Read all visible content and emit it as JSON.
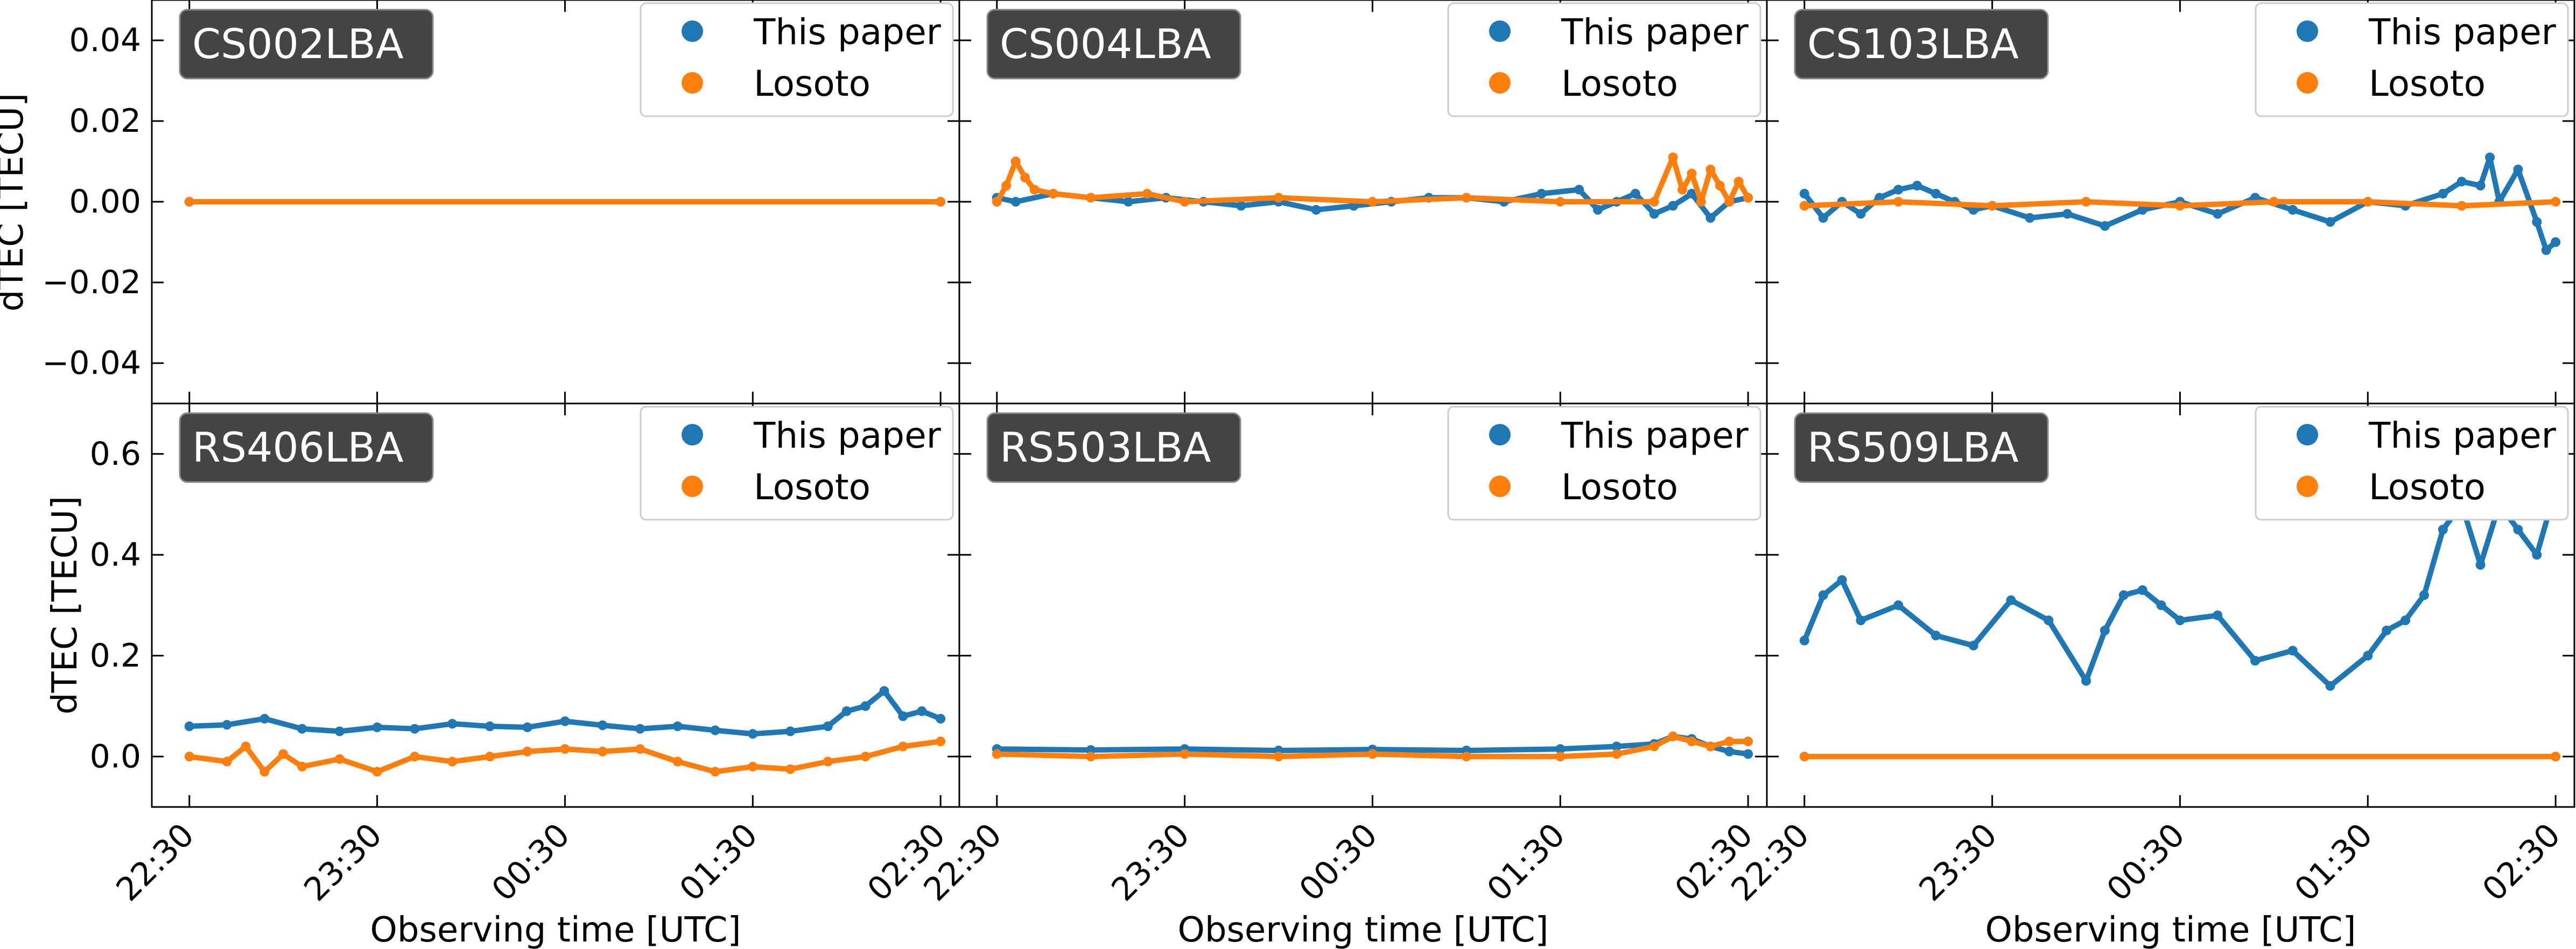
{
  "chart_data": {
    "type": "scatter",
    "x_tick_labels": [
      "22:30",
      "23:30",
      "00:30",
      "01:30",
      "02:30"
    ],
    "x_range_hours": [
      -0.2,
      4.1
    ],
    "x_tick_hours": [
      0,
      1,
      2,
      3,
      4
    ],
    "xlabel": "Observing time [UTC]",
    "ylabel": "dTEC [TECU]",
    "legend": [
      "This paper",
      "Losoto"
    ],
    "series_colors": {
      "This paper": "#1f77b4",
      "Losoto": "#ff7f0e"
    },
    "rows": [
      {
        "ylim": [
          -0.05,
          0.05
        ],
        "y_ticks": [
          -0.04,
          -0.02,
          0.0,
          0.02,
          0.04
        ],
        "y_tick_labels": [
          "−0.04",
          "−0.02",
          "0.00",
          "0.02",
          "0.04"
        ]
      },
      {
        "ylim": [
          -0.1,
          0.7
        ],
        "y_ticks": [
          0.0,
          0.2,
          0.4,
          0.6
        ],
        "y_tick_labels": [
          "0.0",
          "0.2",
          "0.4",
          "0.6"
        ]
      }
    ],
    "panels": [
      {
        "station": "CS002LBA",
        "this_paper": {
          "x": [
            0,
            4
          ],
          "y": [
            0.0,
            0.0
          ]
        },
        "losoto": {
          "x": [
            0,
            4
          ],
          "y": [
            0.0,
            0.0
          ]
        }
      },
      {
        "station": "CS004LBA",
        "this_paper": {
          "x": [
            0,
            0.1,
            0.3,
            0.5,
            0.7,
            0.9,
            1.1,
            1.3,
            1.5,
            1.7,
            1.9,
            2.1,
            2.3,
            2.5,
            2.7,
            2.9,
            3.1,
            3.2,
            3.3,
            3.4,
            3.5,
            3.6,
            3.7,
            3.8,
            3.9,
            4.0
          ],
          "y": [
            0.001,
            0.0,
            0.002,
            0.001,
            0.0,
            0.001,
            0.0,
            -0.001,
            0.0,
            -0.002,
            -0.001,
            0.0,
            0.001,
            0.001,
            0.0,
            0.002,
            0.003,
            -0.002,
            0.0,
            0.002,
            -0.003,
            -0.001,
            0.002,
            -0.004,
            0.0,
            0.001
          ]
        },
        "losoto": {
          "x": [
            0,
            0.05,
            0.1,
            0.15,
            0.2,
            0.3,
            0.5,
            0.8,
            1.0,
            1.5,
            2.0,
            2.5,
            3.0,
            3.5,
            3.6,
            3.65,
            3.7,
            3.75,
            3.8,
            3.85,
            3.9,
            3.95,
            4.0
          ],
          "y": [
            0.0,
            0.004,
            0.01,
            0.006,
            0.003,
            0.002,
            0.001,
            0.002,
            0.0,
            0.001,
            0.0,
            0.001,
            0.0,
            0.0,
            0.011,
            0.003,
            0.007,
            0.0,
            0.008,
            0.004,
            0.0,
            0.005,
            0.001
          ]
        }
      },
      {
        "station": "CS103LBA",
        "this_paper": {
          "x": [
            0,
            0.1,
            0.2,
            0.3,
            0.4,
            0.5,
            0.6,
            0.7,
            0.8,
            0.9,
            1.0,
            1.2,
            1.4,
            1.6,
            1.8,
            2.0,
            2.2,
            2.4,
            2.6,
            2.8,
            3.0,
            3.2,
            3.4,
            3.5,
            3.6,
            3.65,
            3.7,
            3.8,
            3.9,
            3.95,
            4.0
          ],
          "y": [
            0.002,
            -0.004,
            0.0,
            -0.003,
            0.001,
            0.003,
            0.004,
            0.002,
            0.0,
            -0.002,
            -0.001,
            -0.004,
            -0.003,
            -0.006,
            -0.002,
            0.0,
            -0.003,
            0.001,
            -0.002,
            -0.005,
            0.0,
            -0.001,
            0.002,
            0.005,
            0.004,
            0.011,
            0.0,
            0.008,
            -0.005,
            -0.012,
            -0.01
          ]
        },
        "losoto": {
          "x": [
            0,
            0.5,
            1.0,
            1.5,
            2.0,
            2.5,
            3.0,
            3.5,
            4.0
          ],
          "y": [
            -0.001,
            0.0,
            -0.001,
            0.0,
            -0.001,
            0.0,
            0.0,
            -0.001,
            0.0
          ]
        }
      },
      {
        "station": "RS406LBA",
        "this_paper": {
          "x": [
            0,
            0.2,
            0.4,
            0.6,
            0.8,
            1.0,
            1.2,
            1.4,
            1.6,
            1.8,
            2.0,
            2.2,
            2.4,
            2.6,
            2.8,
            3.0,
            3.2,
            3.4,
            3.5,
            3.6,
            3.7,
            3.8,
            3.9,
            4.0
          ],
          "y": [
            0.06,
            0.063,
            0.075,
            0.055,
            0.05,
            0.058,
            0.055,
            0.065,
            0.06,
            0.058,
            0.07,
            0.062,
            0.055,
            0.06,
            0.052,
            0.045,
            0.05,
            0.06,
            0.09,
            0.1,
            0.13,
            0.08,
            0.09,
            0.075
          ]
        },
        "losoto": {
          "x": [
            0,
            0.2,
            0.3,
            0.4,
            0.5,
            0.6,
            0.8,
            1.0,
            1.2,
            1.4,
            1.6,
            1.8,
            2.0,
            2.2,
            2.4,
            2.6,
            2.8,
            3.0,
            3.2,
            3.4,
            3.6,
            3.8,
            4.0
          ],
          "y": [
            0.0,
            -0.01,
            0.02,
            -0.03,
            0.005,
            -0.02,
            -0.005,
            -0.03,
            0.0,
            -0.01,
            0.0,
            0.01,
            0.015,
            0.01,
            0.015,
            -0.01,
            -0.03,
            -0.02,
            -0.025,
            -0.01,
            0.0,
            0.02,
            0.03
          ]
        }
      },
      {
        "station": "RS503LBA",
        "this_paper": {
          "x": [
            0,
            0.5,
            1.0,
            1.5,
            2.0,
            2.5,
            3.0,
            3.3,
            3.5,
            3.6,
            3.7,
            3.8,
            3.9,
            4.0
          ],
          "y": [
            0.015,
            0.013,
            0.015,
            0.012,
            0.014,
            0.012,
            0.015,
            0.02,
            0.025,
            0.04,
            0.035,
            0.02,
            0.01,
            0.005
          ]
        },
        "losoto": {
          "x": [
            0,
            0.5,
            1.0,
            1.5,
            2.0,
            2.5,
            3.0,
            3.3,
            3.5,
            3.6,
            3.7,
            3.8,
            3.9,
            4.0
          ],
          "y": [
            0.005,
            0.0,
            0.005,
            0.0,
            0.005,
            0.0,
            0.0,
            0.005,
            0.02,
            0.04,
            0.03,
            0.02,
            0.03,
            0.03
          ]
        }
      },
      {
        "station": "RS509LBA",
        "this_paper": {
          "x": [
            0,
            0.1,
            0.2,
            0.3,
            0.5,
            0.7,
            0.9,
            1.1,
            1.3,
            1.5,
            1.6,
            1.7,
            1.8,
            1.9,
            2.0,
            2.2,
            2.4,
            2.6,
            2.8,
            3.0,
            3.1,
            3.2,
            3.3,
            3.4,
            3.5,
            3.6,
            3.7,
            3.8,
            3.9,
            4.0
          ],
          "y": [
            0.23,
            0.32,
            0.35,
            0.27,
            0.3,
            0.24,
            0.22,
            0.31,
            0.27,
            0.15,
            0.25,
            0.32,
            0.33,
            0.3,
            0.27,
            0.28,
            0.19,
            0.21,
            0.14,
            0.2,
            0.25,
            0.27,
            0.32,
            0.45,
            0.5,
            0.38,
            0.5,
            0.45,
            0.4,
            0.53
          ]
        },
        "losoto": {
          "x": [
            0,
            4
          ],
          "y": [
            0.0,
            0.0
          ]
        }
      }
    ]
  }
}
